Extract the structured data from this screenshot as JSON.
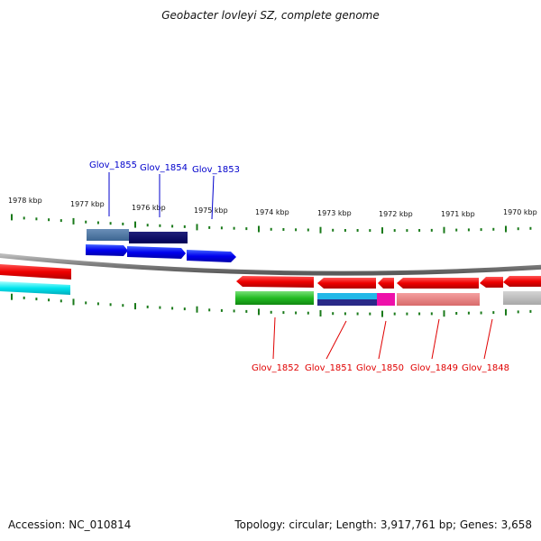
{
  "title": "Geobacter lovleyi SZ, complete genome",
  "accession_text": "Accession: NC_010814",
  "summary_text": "Topology: circular; Length: 3,917,761 bp; Genes: 3,658",
  "ruler": {
    "labels": [
      "1978 kbp",
      "1977 kbp",
      "1976 kbp",
      "1975 kbp",
      "1974 kbp",
      "1973 kbp",
      "1972 kbp",
      "1971 kbp",
      "1970 kbp"
    ]
  },
  "genes_top": [
    {
      "label": "Glov_1855",
      "color": "#0000cc"
    },
    {
      "label": "Glov_1854",
      "color": "#0000cc"
    },
    {
      "label": "Glov_1853",
      "color": "#0000cc"
    }
  ],
  "genes_bottom": [
    {
      "label": "Glov_1852",
      "color": "#e00000"
    },
    {
      "label": "Glov_1851",
      "color": "#e00000"
    },
    {
      "label": "Glov_1850",
      "color": "#e00000"
    },
    {
      "label": "Glov_1849",
      "color": "#e00000"
    },
    {
      "label": "Glov_1848",
      "color": "#e00000"
    }
  ],
  "colors": {
    "tick": "#1a7a1a",
    "backbone": "#808080",
    "forward_gene": "#0000ee",
    "reverse_gene": "#ee0000"
  }
}
